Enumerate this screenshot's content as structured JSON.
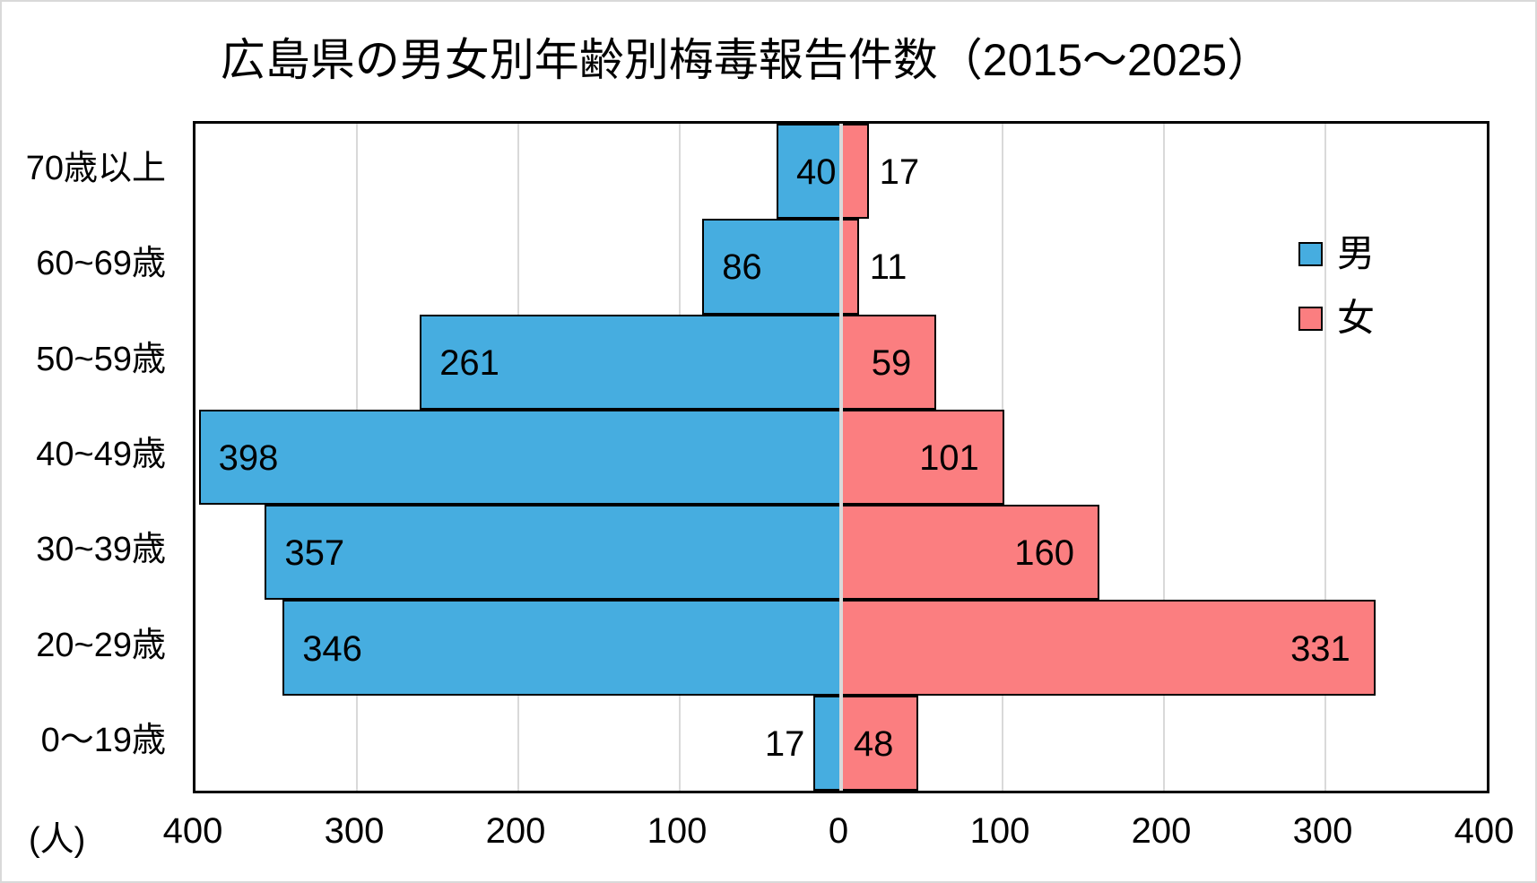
{
  "chart_data": {
    "type": "bar",
    "subtype": "population-pyramid",
    "title": "広島県の男女別年齢別梅毒報告件数（2015～2025）",
    "unit_label": "(人)",
    "categories": [
      "70歳以上",
      "60~69歳",
      "50~59歳",
      "40~49歳",
      "30~39歳",
      "20~29歳",
      "0～19歳"
    ],
    "series": [
      {
        "name": "男",
        "side": "left",
        "color": "#46ADE0",
        "values": [
          40,
          86,
          261,
          398,
          357,
          346,
          17
        ]
      },
      {
        "name": "女",
        "side": "right",
        "color": "#FB7E80",
        "values": [
          17,
          11,
          59,
          101,
          160,
          331,
          48
        ]
      }
    ],
    "x_ticks": [
      "400",
      "300",
      "200",
      "100",
      "0",
      "100",
      "200",
      "300",
      "400"
    ],
    "xlim_each_side": [
      0,
      400
    ],
    "grid": true,
    "legend_position": "right-inside",
    "colors": {
      "gridline": "#D9D9D9",
      "bar_border": "#000000",
      "plot_border": "#000000",
      "text": "#000000",
      "background": "#FFFFFF",
      "frame_border": "#D9D9D9"
    }
  }
}
